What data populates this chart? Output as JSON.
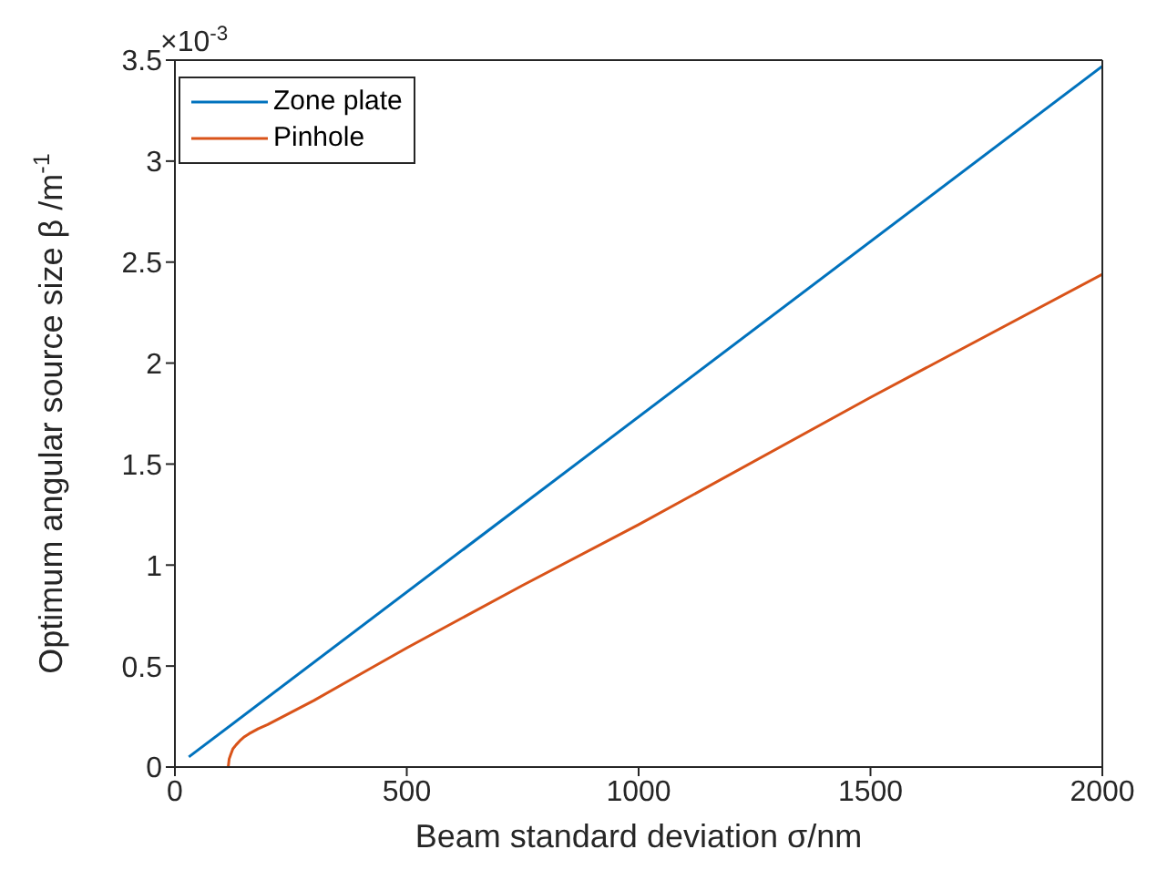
{
  "chart_data": {
    "type": "line",
    "xlabel": "Beam standard deviation σ/nm",
    "ylabel": "Optimum angular source size β /m$^{-1}$",
    "annotations": [
      "×10$^{-3}$"
    ],
    "xlim": [
      0,
      2000
    ],
    "xticks": [
      0,
      500,
      1000,
      1500,
      2000
    ],
    "ylim": [
      0,
      3.5
    ],
    "yticks": [
      0,
      0.5,
      1,
      1.5,
      2,
      2.5,
      3,
      3.5
    ],
    "legend": "top left",
    "grid": false,
    "marker": "none",
    "line_style": "solid",
    "series": [
      {
        "name": "Zone plate",
        "color": "#0072bd",
        "x": [
          30,
          2000
        ],
        "values": [
          0.05,
          3.47
        ]
      },
      {
        "name": "Pinhole",
        "color": "#d95319",
        "x": [
          115,
          117,
          120,
          125,
          132,
          140,
          150,
          160,
          180,
          200,
          250,
          300,
          400,
          500,
          750,
          1000,
          1500,
          2000
        ],
        "values": [
          0,
          0.04,
          0.06,
          0.09,
          0.11,
          0.13,
          0.15,
          0.165,
          0.19,
          0.21,
          0.27,
          0.33,
          0.46,
          0.59,
          0.9,
          1.2,
          1.83,
          2.44
        ]
      }
    ]
  }
}
